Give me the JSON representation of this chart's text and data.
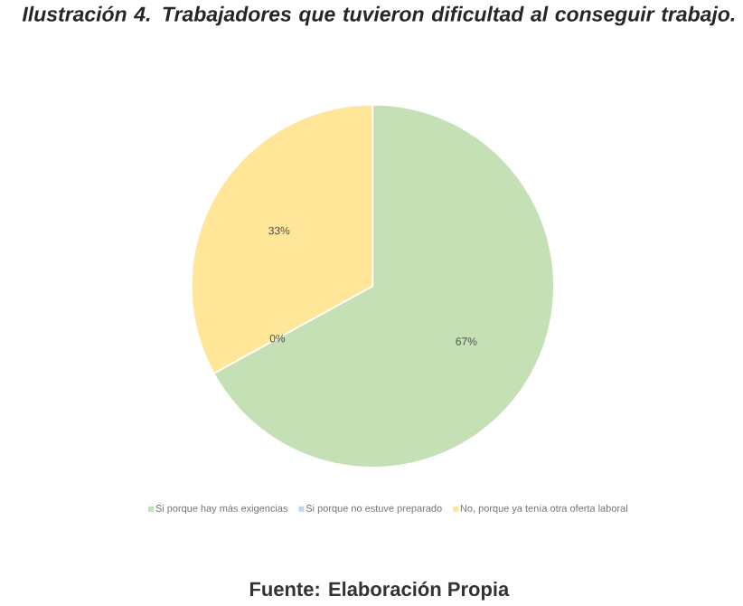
{
  "chart_data": {
    "type": "pie",
    "title": "Ilustración 4. Trabajadores que tuvieron dificultad al conseguir trabajo.",
    "categories": [
      "Si porque hay más exigencias",
      "Si porque no estuve preparado",
      "No, porque ya tenía otra oferta laboral"
    ],
    "values": [
      67,
      0,
      33
    ],
    "value_labels": [
      "67%",
      "0%",
      "33%"
    ],
    "colors": [
      "#c5e0b4",
      "#bdd7ee",
      "#ffe699"
    ],
    "legend": "bottom",
    "annotations": [
      "Fuente: Elaboración Propia"
    ]
  }
}
